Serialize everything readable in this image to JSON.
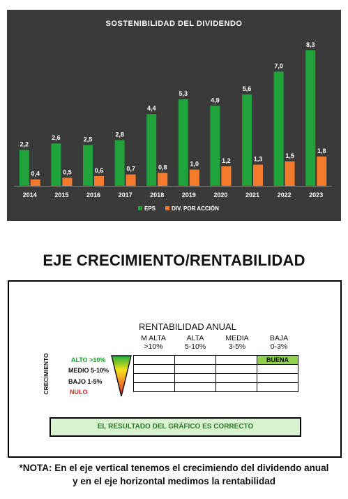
{
  "chart_data": {
    "type": "bar",
    "title": "SOSTENIBILIDAD DEL DIVIDENDO",
    "categories": [
      "2014",
      "2015",
      "2016",
      "2017",
      "2018",
      "2019",
      "2020",
      "2021",
      "2022",
      "2023"
    ],
    "series": [
      {
        "name": "EPS",
        "values": [
          2.2,
          2.6,
          2.5,
          2.8,
          4.4,
          5.3,
          4.9,
          5.6,
          7.0,
          8.3
        ],
        "labels": [
          "2,2",
          "2,6",
          "2,5",
          "2,8",
          "4,4",
          "5,3",
          "4,9",
          "5,6",
          "7,0",
          "8,3"
        ],
        "color": "#1fa33a"
      },
      {
        "name": "DIV. POR ACCIÓN",
        "values": [
          0.4,
          0.5,
          0.6,
          0.7,
          0.8,
          1.0,
          1.2,
          1.3,
          1.5,
          1.8
        ],
        "labels": [
          "0,4",
          "0,5",
          "0,6",
          "0,7",
          "0,8",
          "1,0",
          "1,2",
          "1,3",
          "1,5",
          "1,8"
        ],
        "color": "#f47a2c"
      }
    ],
    "xlabel": "",
    "ylabel": "",
    "ylim": [
      0,
      8.3
    ],
    "grid": false,
    "legend": "bottom",
    "background": "#3a3a3a"
  },
  "section": {
    "title": "EJE CRECIMIENTO/RENTABILIDAD"
  },
  "matrix": {
    "title": "RENTABILIDAD ANUAL",
    "columns": [
      {
        "name": "M ALTA",
        "range": ">10%"
      },
      {
        "name": "ALTA",
        "range": "5-10%"
      },
      {
        "name": "MEDIA",
        "range": "3-5%"
      },
      {
        "name": "BAJA",
        "range": "0-3%"
      }
    ],
    "axis_label": "CRECIMIENTO",
    "rows": [
      {
        "label": "ALTO >10%",
        "color": "#1f9e2d"
      },
      {
        "label": "MEDIO 5-10%",
        "color": "#111111"
      },
      {
        "label": "BAJO 1-5%",
        "color": "#111111"
      },
      {
        "label": "NULO",
        "color": "#e02020"
      }
    ],
    "highlight": {
      "row": 0,
      "col": 3,
      "text": "BUENA",
      "color": "#92d050"
    },
    "result": "EL RESULTADO DEL GRÁFICO ES CORRECTO"
  },
  "note": {
    "line1": "*NOTA: En el eje vertical tenemos el crecimiendo del dividendo anual",
    "line2": "y en el eje horizontal medimos la rentabilidad"
  }
}
